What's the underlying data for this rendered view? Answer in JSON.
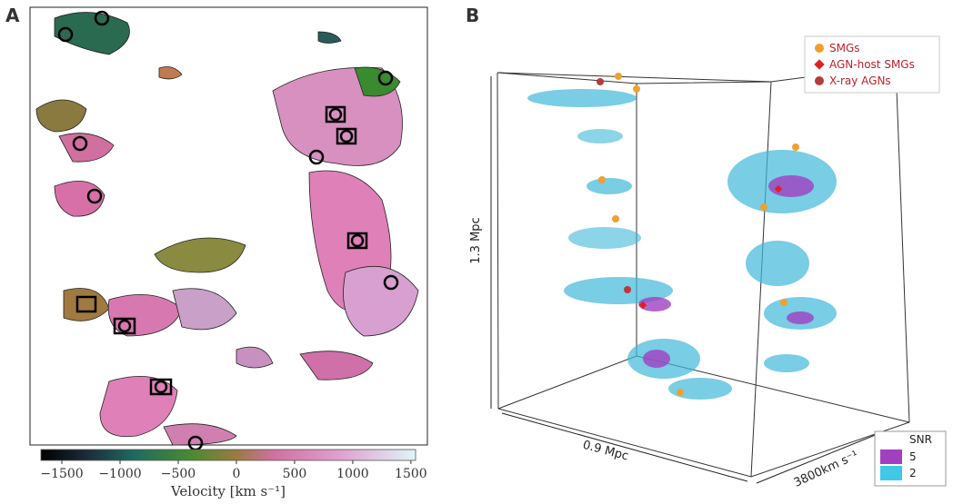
{
  "panel_a": {
    "label": "A",
    "colorbar": {
      "label": "Velocity [km s⁻¹]",
      "lim": [
        -1680,
        1540
      ],
      "ticks": [
        {
          "value": -1500,
          "label": "−1500"
        },
        {
          "value": -1000,
          "label": "−1000"
        },
        {
          "value": -500,
          "label": "−500"
        },
        0,
        500,
        1000,
        1500
      ]
    }
  },
  "panel_b": {
    "label": "B",
    "legend": [
      {
        "label": "SMGs",
        "color": "#f0a030",
        "marker": "circle"
      },
      {
        "label": "AGN-host SMGs",
        "color": "#e02020",
        "marker": "diamond"
      },
      {
        "label": "X-ray AGNs",
        "color": "#b83a3a",
        "marker": "circle"
      }
    ],
    "axes": {
      "height": "1.3 Mpc",
      "width": "0.9 Mpc",
      "depth": "3800km s⁻¹"
    },
    "snr_legend": {
      "title": "SNR",
      "entries": [
        {
          "label": "5",
          "color": "#a040c0"
        },
        {
          "label": "2",
          "color": "#40c8e8"
        }
      ]
    }
  }
}
